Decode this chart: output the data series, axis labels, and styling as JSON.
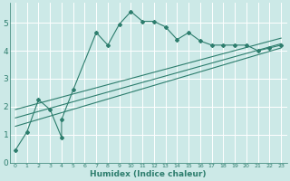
{
  "xlabel": "Humidex (Indice chaleur)",
  "ylabel": "",
  "bg_color": "#cce9e7",
  "grid_color": "#ffffff",
  "line_color": "#2d7d6d",
  "xlim": [
    -0.5,
    23.5
  ],
  "ylim": [
    0,
    5.7
  ],
  "yticks": [
    0,
    1,
    2,
    3,
    4,
    5
  ],
  "xticks": [
    0,
    1,
    2,
    3,
    4,
    5,
    6,
    7,
    8,
    9,
    10,
    11,
    12,
    13,
    14,
    15,
    16,
    17,
    18,
    19,
    20,
    21,
    22,
    23
  ],
  "jagged_x": [
    0,
    1,
    2,
    3,
    4,
    4,
    5,
    7,
    8,
    9,
    10,
    11,
    12,
    13,
    14,
    15,
    16,
    17,
    18,
    19,
    20,
    21,
    22,
    23
  ],
  "jagged_y": [
    0.45,
    1.1,
    2.25,
    1.9,
    0.9,
    1.55,
    2.6,
    4.65,
    4.2,
    4.95,
    5.4,
    5.05,
    5.05,
    4.85,
    4.4,
    4.65,
    4.35,
    4.2,
    4.2,
    4.2,
    4.2,
    4.0,
    4.1,
    4.2
  ],
  "line1_x": [
    0,
    23
  ],
  "line1_y": [
    1.3,
    4.1
  ],
  "line2_x": [
    0,
    23
  ],
  "line2_y": [
    1.6,
    4.25
  ],
  "line3_x": [
    0,
    23
  ],
  "line3_y": [
    1.9,
    4.45
  ]
}
